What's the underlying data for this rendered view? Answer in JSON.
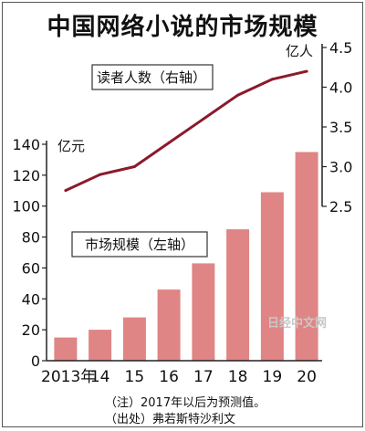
{
  "title": "中国网络小说的市场规模",
  "notes": [
    "（注）2017年以后为预测值。",
    "（出处）弗若斯特沙利文"
  ],
  "watermark": "日经中文网",
  "chart_data": {
    "type": "bar+line",
    "title": "中国网络小说的市场规模",
    "categories": [
      "2013年",
      "14",
      "15",
      "16",
      "17",
      "18",
      "19",
      "20"
    ],
    "series": [
      {
        "name": "市场规模（左轴）",
        "type": "bar",
        "axis": "left",
        "unit": "亿元",
        "color": "#e08585",
        "values": [
          15,
          20,
          28,
          46,
          63,
          85,
          109,
          135
        ]
      },
      {
        "name": "读者人数（右轴）",
        "type": "line",
        "axis": "right",
        "unit": "亿人",
        "color": "#8b1a2a",
        "values": [
          2.7,
          2.9,
          3.0,
          3.3,
          3.6,
          3.9,
          4.1,
          4.2
        ]
      }
    ],
    "left_axis": {
      "unit": "亿元",
      "ylim": [
        0,
        140
      ],
      "ticks": [
        0,
        20,
        40,
        60,
        80,
        100,
        120,
        140
      ]
    },
    "right_axis": {
      "unit": "亿人",
      "ylim": [
        2.5,
        4.5
      ],
      "ticks": [
        2.5,
        3.0,
        3.5,
        4.0,
        4.5
      ],
      "tick_labels": [
        "2.5",
        "3.0",
        "3.5",
        "4.0",
        "4.5"
      ]
    },
    "grid": false
  }
}
